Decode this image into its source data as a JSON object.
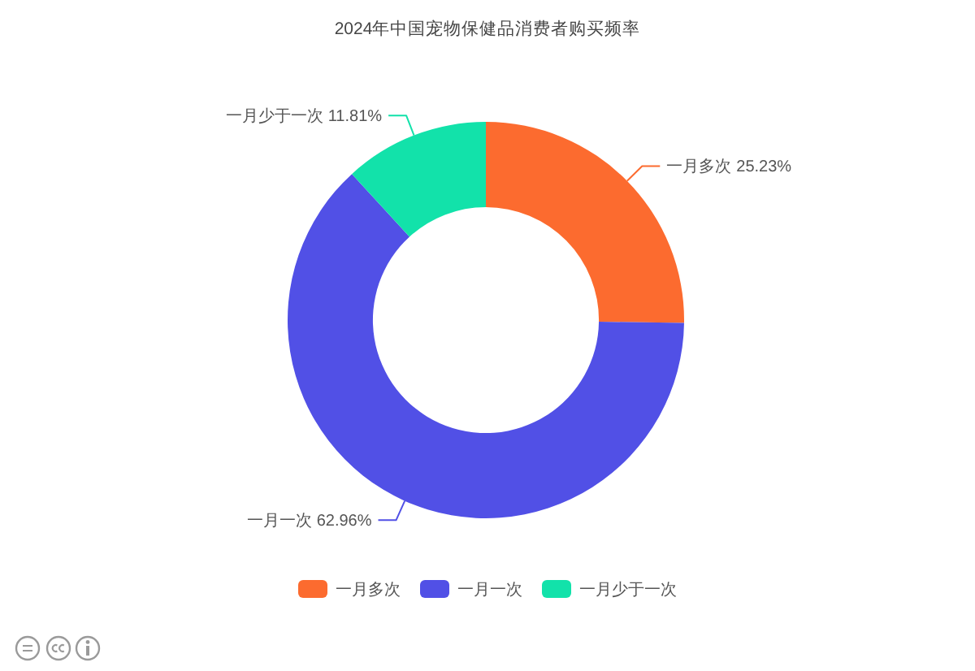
{
  "chart_data": {
    "type": "donut",
    "title": "2024年中国宠物保健品消费者购买频率",
    "categories": [
      "一月多次",
      "一月一次",
      "一月少于一次"
    ],
    "values": [
      25.23,
      62.96,
      11.81
    ],
    "value_labels": [
      "25.23%",
      "62.96%",
      "11.81%"
    ],
    "colors": [
      "#fc6b2f",
      "#5150e6",
      "#12e2aa"
    ],
    "legend": "bottom"
  }
}
